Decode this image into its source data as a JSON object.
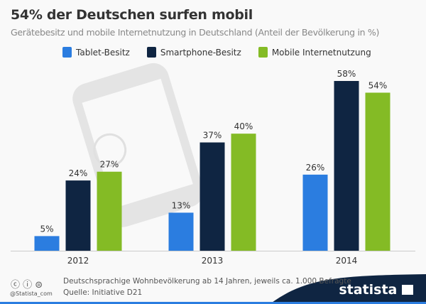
{
  "chart_data": {
    "type": "bar",
    "title": "54% der Deutschen surfen mobil",
    "subtitle": "Gerätebesitz und mobile Internetnutzung in Deutschland (Anteil der Bevölkerung in %)",
    "categories": [
      "2012",
      "2013",
      "2014"
    ],
    "series": [
      {
        "name": "Tablet-Besitz",
        "color": "#2b7de0",
        "values": [
          5,
          13,
          26
        ],
        "labels": [
          "5%",
          "13%",
          "26%"
        ]
      },
      {
        "name": "Smartphone-Besitz",
        "color": "#0f2542",
        "values": [
          24,
          37,
          58
        ],
        "labels": [
          "24%",
          "37%",
          "58%"
        ]
      },
      {
        "name": "Mobile Internetnutzung",
        "color": "#84bb25",
        "values": [
          27,
          40,
          54
        ],
        "labels": [
          "27%",
          "40%",
          "54%"
        ]
      }
    ],
    "ylim": [
      0,
      60
    ],
    "grid": false,
    "legend": "top"
  },
  "footer": {
    "note": "Deutschsprachige Wohnbevölkerung ab 14 Jahren, jeweils ca. 1.000 Befragte",
    "source": "Quelle: Initiative D21",
    "handle": "@Statista_com",
    "license_icons": "cc-by-nd-icons",
    "brand": "statista"
  }
}
